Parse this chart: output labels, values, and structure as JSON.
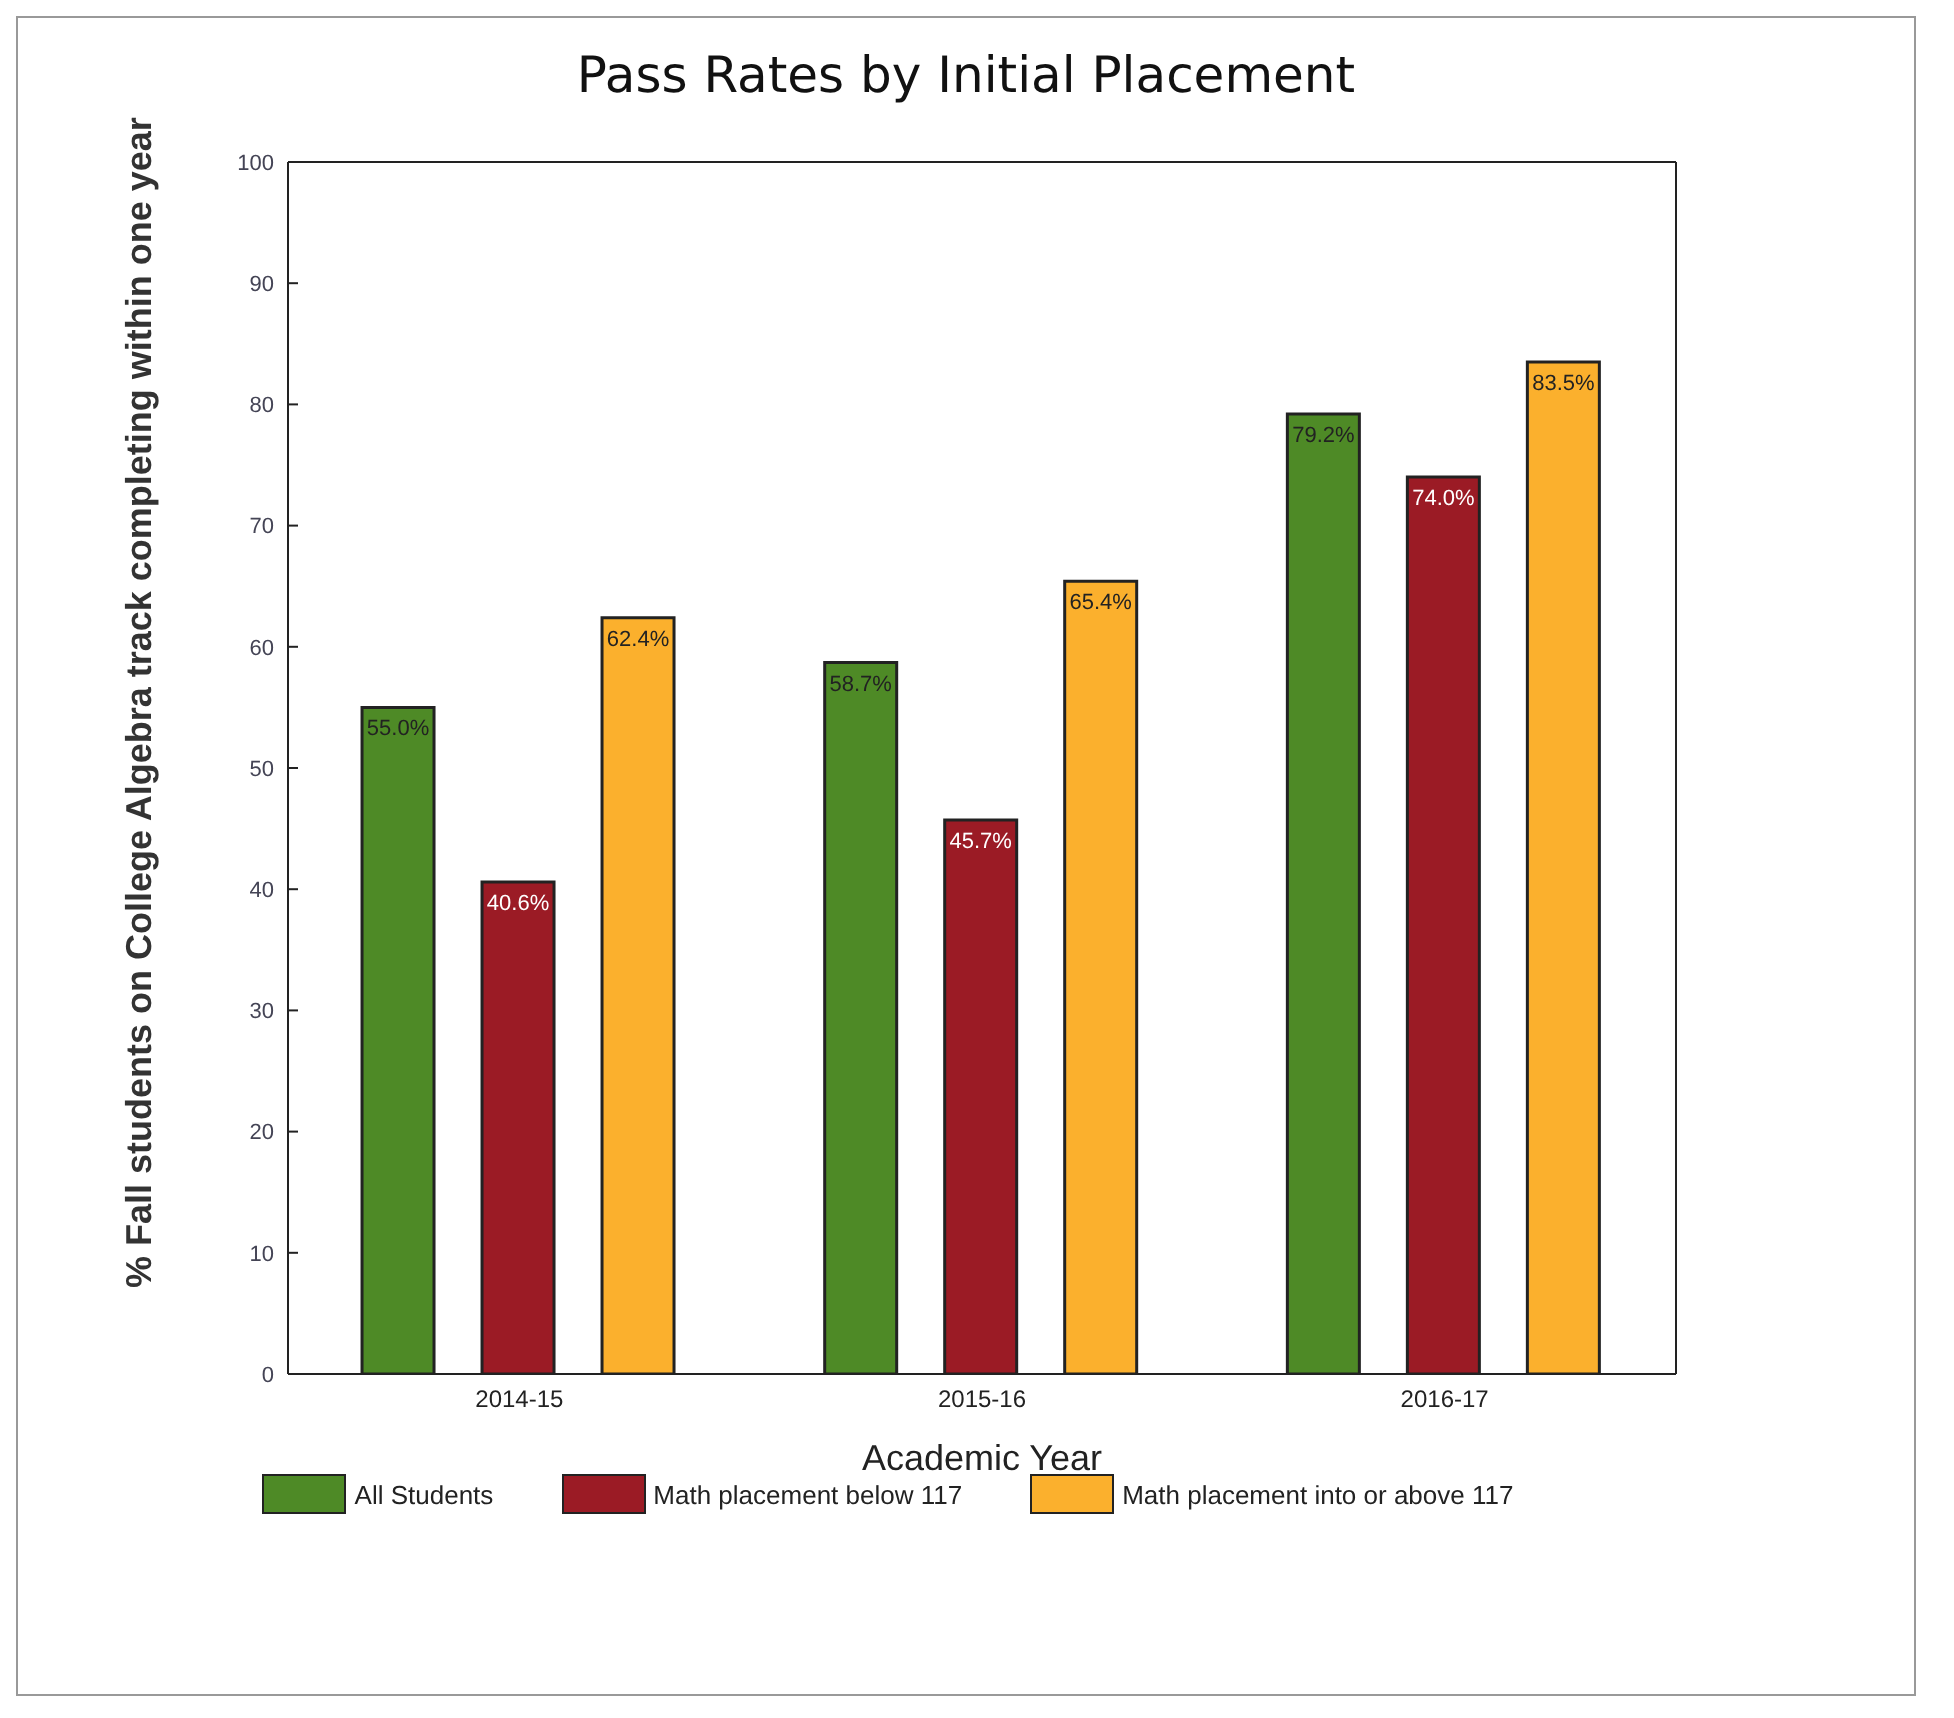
{
  "chart_data": {
    "type": "bar",
    "title": "Pass Rates by Initial Placement",
    "xlabel": "Academic Year",
    "ylabel": "% Fall students on College Algebra track completing within one year",
    "categories": [
      "2014-15",
      "2015-16",
      "2016-17"
    ],
    "ylim": [
      0,
      100
    ],
    "yticks": [
      0,
      10,
      20,
      30,
      40,
      50,
      60,
      70,
      80,
      90,
      100
    ],
    "grid": false,
    "legend": "bottom",
    "series": [
      {
        "name": "All Students",
        "color": "#4e8a26",
        "values": [
          55.0,
          58.7,
          79.2
        ],
        "value_labels": [
          "55.0%",
          "58.7%",
          "79.2%"
        ]
      },
      {
        "name": "Math placement below 117",
        "color": "#9b1b25",
        "values": [
          40.6,
          45.7,
          74.0
        ],
        "value_labels": [
          "40.6%",
          "45.7%",
          "74.0%"
        ]
      },
      {
        "name": "Math placement into or above 117",
        "color": "#fbb02d",
        "values": [
          62.4,
          65.4,
          83.5
        ],
        "value_labels": [
          "62.4%",
          "65.4%",
          "83.5%"
        ]
      }
    ]
  }
}
